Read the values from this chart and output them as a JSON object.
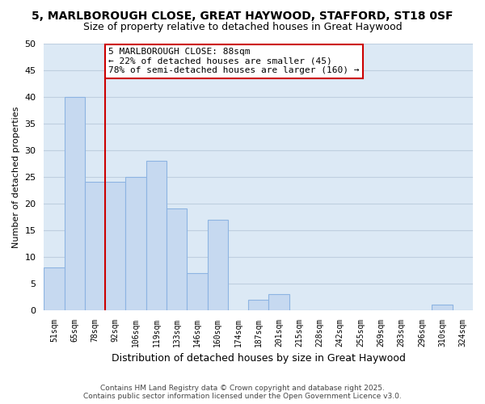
{
  "title": "5, MARLBOROUGH CLOSE, GREAT HAYWOOD, STAFFORD, ST18 0SF",
  "subtitle": "Size of property relative to detached houses in Great Haywood",
  "xlabel": "Distribution of detached houses by size in Great Haywood",
  "ylabel": "Number of detached properties",
  "bin_labels": [
    "51sqm",
    "65sqm",
    "78sqm",
    "92sqm",
    "106sqm",
    "119sqm",
    "133sqm",
    "146sqm",
    "160sqm",
    "174sqm",
    "187sqm",
    "201sqm",
    "215sqm",
    "228sqm",
    "242sqm",
    "255sqm",
    "269sqm",
    "283sqm",
    "296sqm",
    "310sqm",
    "324sqm"
  ],
  "bar_values": [
    8,
    40,
    24,
    24,
    25,
    28,
    19,
    7,
    17,
    0,
    2,
    3,
    0,
    0,
    0,
    0,
    0,
    0,
    0,
    1,
    0
  ],
  "bar_color": "#c6d9f0",
  "bar_edge_color": "#8db4e2",
  "ax_bg_color": "#dce9f5",
  "ylim": [
    0,
    50
  ],
  "yticks": [
    0,
    5,
    10,
    15,
    20,
    25,
    30,
    35,
    40,
    45,
    50
  ],
  "vline_x_idx": 3,
  "vline_color": "#cc0000",
  "annotation_title": "5 MARLBOROUGH CLOSE: 88sqm",
  "annotation_line1": "← 22% of detached houses are smaller (45)",
  "annotation_line2": "78% of semi-detached houses are larger (160) →",
  "annotation_box_color": "#ffffff",
  "annotation_box_edge": "#cc0000",
  "footer1": "Contains HM Land Registry data © Crown copyright and database right 2025.",
  "footer2": "Contains public sector information licensed under the Open Government Licence v3.0.",
  "background_color": "#ffffff",
  "grid_color": "#bfcfe0"
}
